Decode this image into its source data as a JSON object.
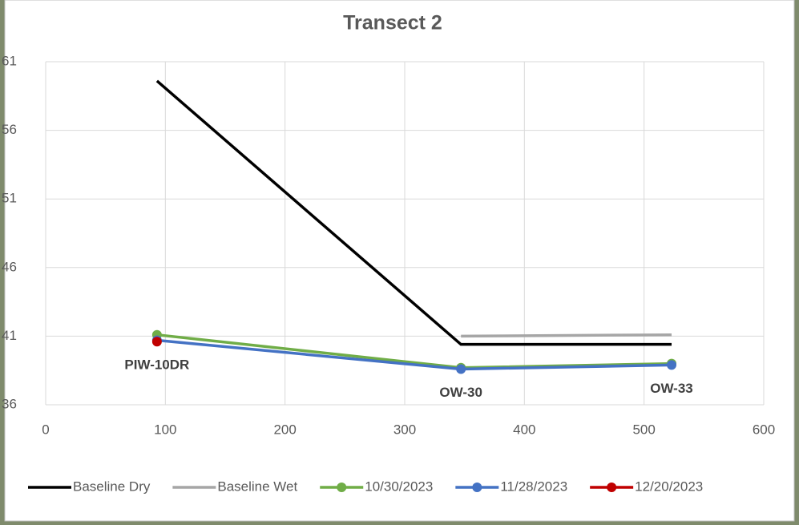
{
  "chart_data": {
    "type": "line",
    "title": "Transect 2",
    "x": [
      93,
      347,
      523
    ],
    "point_labels": [
      "PIW-10DR",
      "OW-30",
      "OW-33"
    ],
    "series": [
      {
        "name": "Baseline Dry",
        "color": "#000000",
        "marker": false,
        "values": [
          59.6,
          40.4,
          40.4
        ]
      },
      {
        "name": "Baseline Wet",
        "color": "#a6a6a6",
        "marker": false,
        "values": [
          null,
          41.0,
          41.1
        ]
      },
      {
        "name": "10/30/2023",
        "color": "#70ad47",
        "marker": true,
        "values": [
          41.1,
          38.7,
          39.0
        ]
      },
      {
        "name": "11/28/2023",
        "color": "#4472c4",
        "marker": true,
        "values": [
          40.7,
          38.6,
          38.9
        ]
      },
      {
        "name": "12/20/2023",
        "color": "#c00000",
        "marker": true,
        "values": [
          40.6,
          null,
          null
        ]
      }
    ],
    "xlim": [
      0,
      600
    ],
    "xticks": [
      0,
      100,
      200,
      300,
      400,
      500,
      600
    ],
    "ylim": [
      36,
      61
    ],
    "yticks": [
      36,
      41,
      46,
      51,
      56,
      61
    ],
    "grid": true,
    "legend": "bottom"
  }
}
